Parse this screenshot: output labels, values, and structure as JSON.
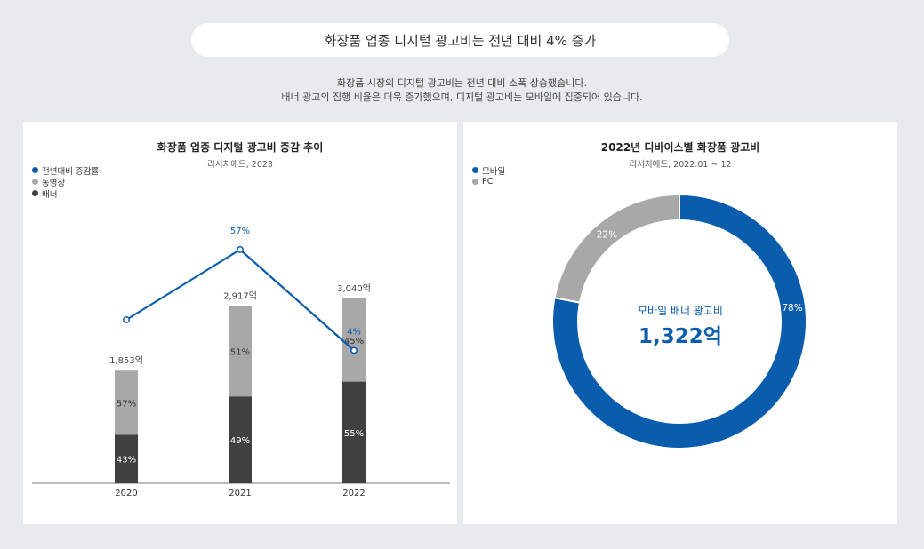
{
  "header": {
    "title": "화장품 업종 디지털 광고비는 전년 대비 4% 증가",
    "desc_line1": "화장품 시장의 디지털 광고비는 전년 대비 소폭 상승했습니다.",
    "desc_line2": "배너 광고의 집행 비율은 더욱 증가했으며, 디지털 광고비는 모바일에 집중되어 있습니다."
  },
  "colors": {
    "line": "#0a5cad",
    "video": "#a8a8a8",
    "banner": "#404040",
    "mobile": "#0a5cad",
    "pc": "#a8a8a8"
  },
  "chart_data": [
    {
      "type": "bar",
      "title": "화장품 업종 디지털 광고비 증감 추이",
      "subtitle": "리서치애드, 2023",
      "categories": [
        "2020",
        "2021",
        "2022"
      ],
      "totals": [
        1853,
        2917,
        3040
      ],
      "total_labels": [
        "1,853억",
        "2,917억",
        "3,040억"
      ],
      "series": [
        {
          "name": "배너",
          "values": [
            43,
            49,
            55
          ],
          "labels": [
            "43%",
            "49%",
            "55%"
          ]
        },
        {
          "name": "동영상",
          "values": [
            57,
            51,
            45
          ],
          "labels": [
            "57%",
            "51%",
            "45%"
          ]
        }
      ],
      "line": {
        "name": "전년대비 증감률",
        "values": [
          null,
          57,
          4
        ],
        "labels": [
          "",
          "57%",
          "4%"
        ]
      },
      "legend": [
        "전년대비 증감률",
        "동영상",
        "배너"
      ],
      "legend_position": "top-left"
    },
    {
      "type": "pie",
      "title": "2022년 디바이스별 화장품 광고비",
      "subtitle": "리서치애드, 2022.01 ~ 12",
      "slices": [
        {
          "name": "모바일",
          "value": 78,
          "label": "78%"
        },
        {
          "name": "PC",
          "value": 22,
          "label": "22%"
        }
      ],
      "legend": [
        "모바일",
        "PC"
      ],
      "legend_position": "top-left",
      "center_label": "모바일 배너 광고비",
      "center_value": "1,322억"
    }
  ]
}
